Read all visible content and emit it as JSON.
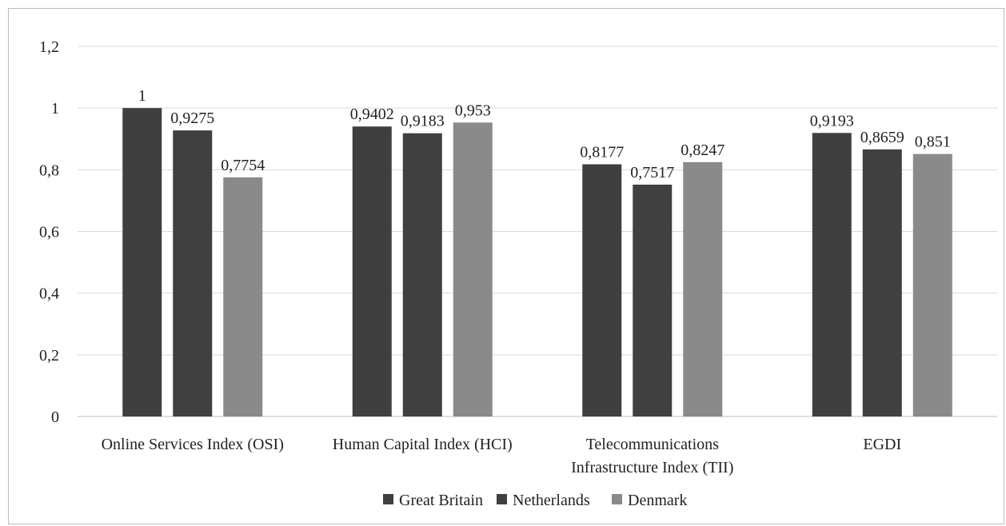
{
  "chart_data": {
    "type": "bar",
    "categories": [
      [
        "Online Services Index (OSI)"
      ],
      [
        "Human Capital Index (HCI)"
      ],
      [
        "Telecommunications",
        "Infrastructure Index (TII)"
      ],
      [
        "EGDI"
      ]
    ],
    "series": [
      {
        "name": "Great Britain",
        "values": [
          1,
          0.9402,
          0.8177,
          0.9193
        ],
        "labels": [
          "1",
          "0,9402",
          "0,8177",
          "0,9193"
        ],
        "color": "#3f3f3f"
      },
      {
        "name": "Netherlands",
        "values": [
          0.9275,
          0.9183,
          0.7517,
          0.8659
        ],
        "labels": [
          "0,9275",
          "0,9183",
          "0,7517",
          "0,8659"
        ],
        "color": "#404040"
      },
      {
        "name": "Denmark",
        "values": [
          0.7754,
          0.953,
          0.8247,
          0.851
        ],
        "labels": [
          "0,7754",
          "0,953",
          "0,8247",
          "0,851"
        ],
        "color": "#8a8a8a"
      }
    ],
    "yticks": [
      "0",
      "0,2",
      "0,4",
      "0,6",
      "0,8",
      "1",
      "1,2"
    ],
    "ylim": [
      0,
      1.2
    ],
    "grid": true,
    "legend": "bottom"
  }
}
